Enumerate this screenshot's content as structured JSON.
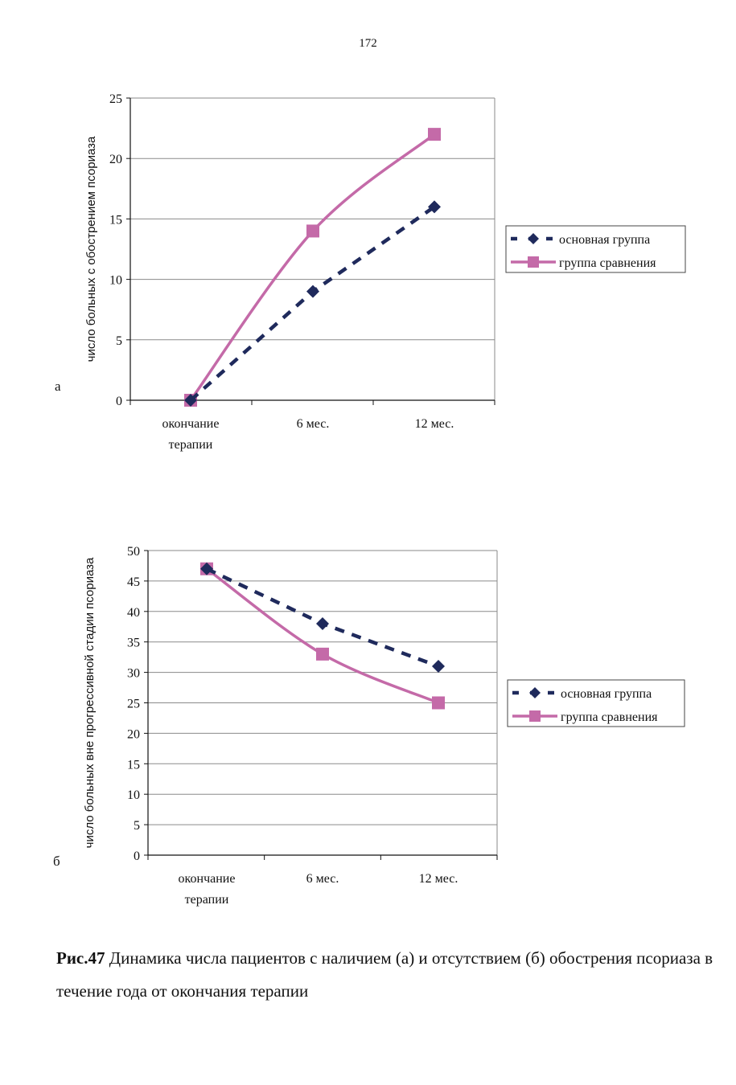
{
  "page_number": "172",
  "caption": {
    "figure_label": "Рис.47",
    "text": "Динамика числа пациентов с наличием (а) и отсутствием (б) обострения псориаза в течение года от окончания терапии"
  },
  "colors": {
    "main_group": "#1f2a5c",
    "comparison_group": "#c46aa8",
    "grid": "#8a8a8a"
  },
  "chart_data": [
    {
      "type": "line",
      "panel_label": "а",
      "ylabel": "число больных с обострением псориаза",
      "xlabel": "",
      "categories": [
        [
          "окончание",
          "терапии"
        ],
        [
          "6 мес."
        ],
        [
          "12 мес."
        ]
      ],
      "ylim": [
        0,
        25
      ],
      "yticks": [
        0,
        5,
        10,
        15,
        20,
        25
      ],
      "grid": true,
      "legend": "right",
      "series": [
        {
          "name": "основная группа",
          "values": [
            0,
            9,
            16
          ],
          "marker": "diamond",
          "dash": true
        },
        {
          "name": "группа сравнения",
          "values": [
            0,
            14,
            22
          ],
          "marker": "square",
          "dash": false
        }
      ]
    },
    {
      "type": "line",
      "panel_label": "б",
      "ylabel": "число больных вне прогрессивной стадии псориаза",
      "xlabel": "",
      "categories": [
        [
          "окончание",
          "терапии"
        ],
        [
          "6 мес."
        ],
        [
          "12 мес."
        ]
      ],
      "ylim": [
        0,
        50
      ],
      "yticks": [
        0,
        5,
        10,
        15,
        20,
        25,
        30,
        35,
        40,
        45,
        50
      ],
      "grid": true,
      "legend": "right",
      "series": [
        {
          "name": "основная группа",
          "values": [
            47,
            38,
            31
          ],
          "marker": "diamond",
          "dash": true
        },
        {
          "name": "группа сравнения",
          "values": [
            47,
            33,
            25
          ],
          "marker": "square",
          "dash": false
        }
      ]
    }
  ]
}
